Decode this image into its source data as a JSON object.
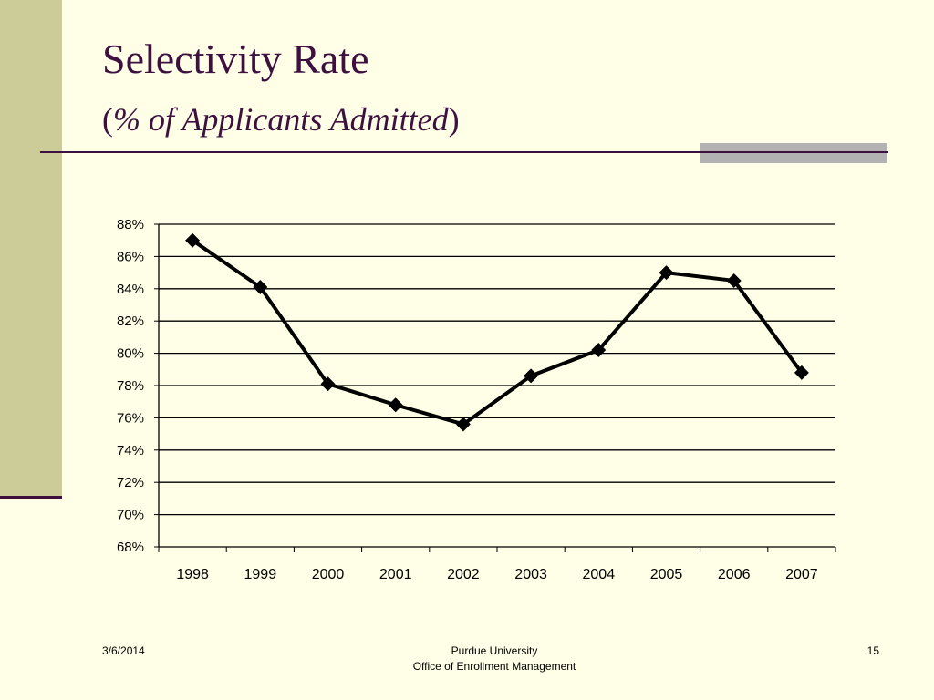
{
  "slide": {
    "title": "Selectivity Rate",
    "subtitle_paren_open": "(",
    "subtitle_text": "% of Applicants Admitted",
    "subtitle_paren_close": ")",
    "footer_date": "3/6/2014",
    "footer_org_line1": "Purdue University",
    "footer_org_line2": "Office of Enrollment Management",
    "page_number": "15"
  },
  "colors": {
    "background": "#FFFEE6",
    "side_bar": "#CCCC99",
    "accent": "#3D1040",
    "gray_block": "#B2B2B2",
    "series": "#000000"
  },
  "chart_data": {
    "type": "line",
    "title": "",
    "xlabel": "",
    "ylabel": "",
    "categories": [
      "1998",
      "1999",
      "2000",
      "2001",
      "2002",
      "2003",
      "2004",
      "2005",
      "2006",
      "2007"
    ],
    "series": [
      {
        "values": [
          87.0,
          84.1,
          78.1,
          76.8,
          75.6,
          78.6,
          80.2,
          85.0,
          84.5,
          78.8
        ]
      }
    ],
    "ylim": [
      68,
      88
    ],
    "ytick_step": 2,
    "ytick_format": "percent",
    "marker": "diamond",
    "grid": true,
    "legend": "none"
  }
}
